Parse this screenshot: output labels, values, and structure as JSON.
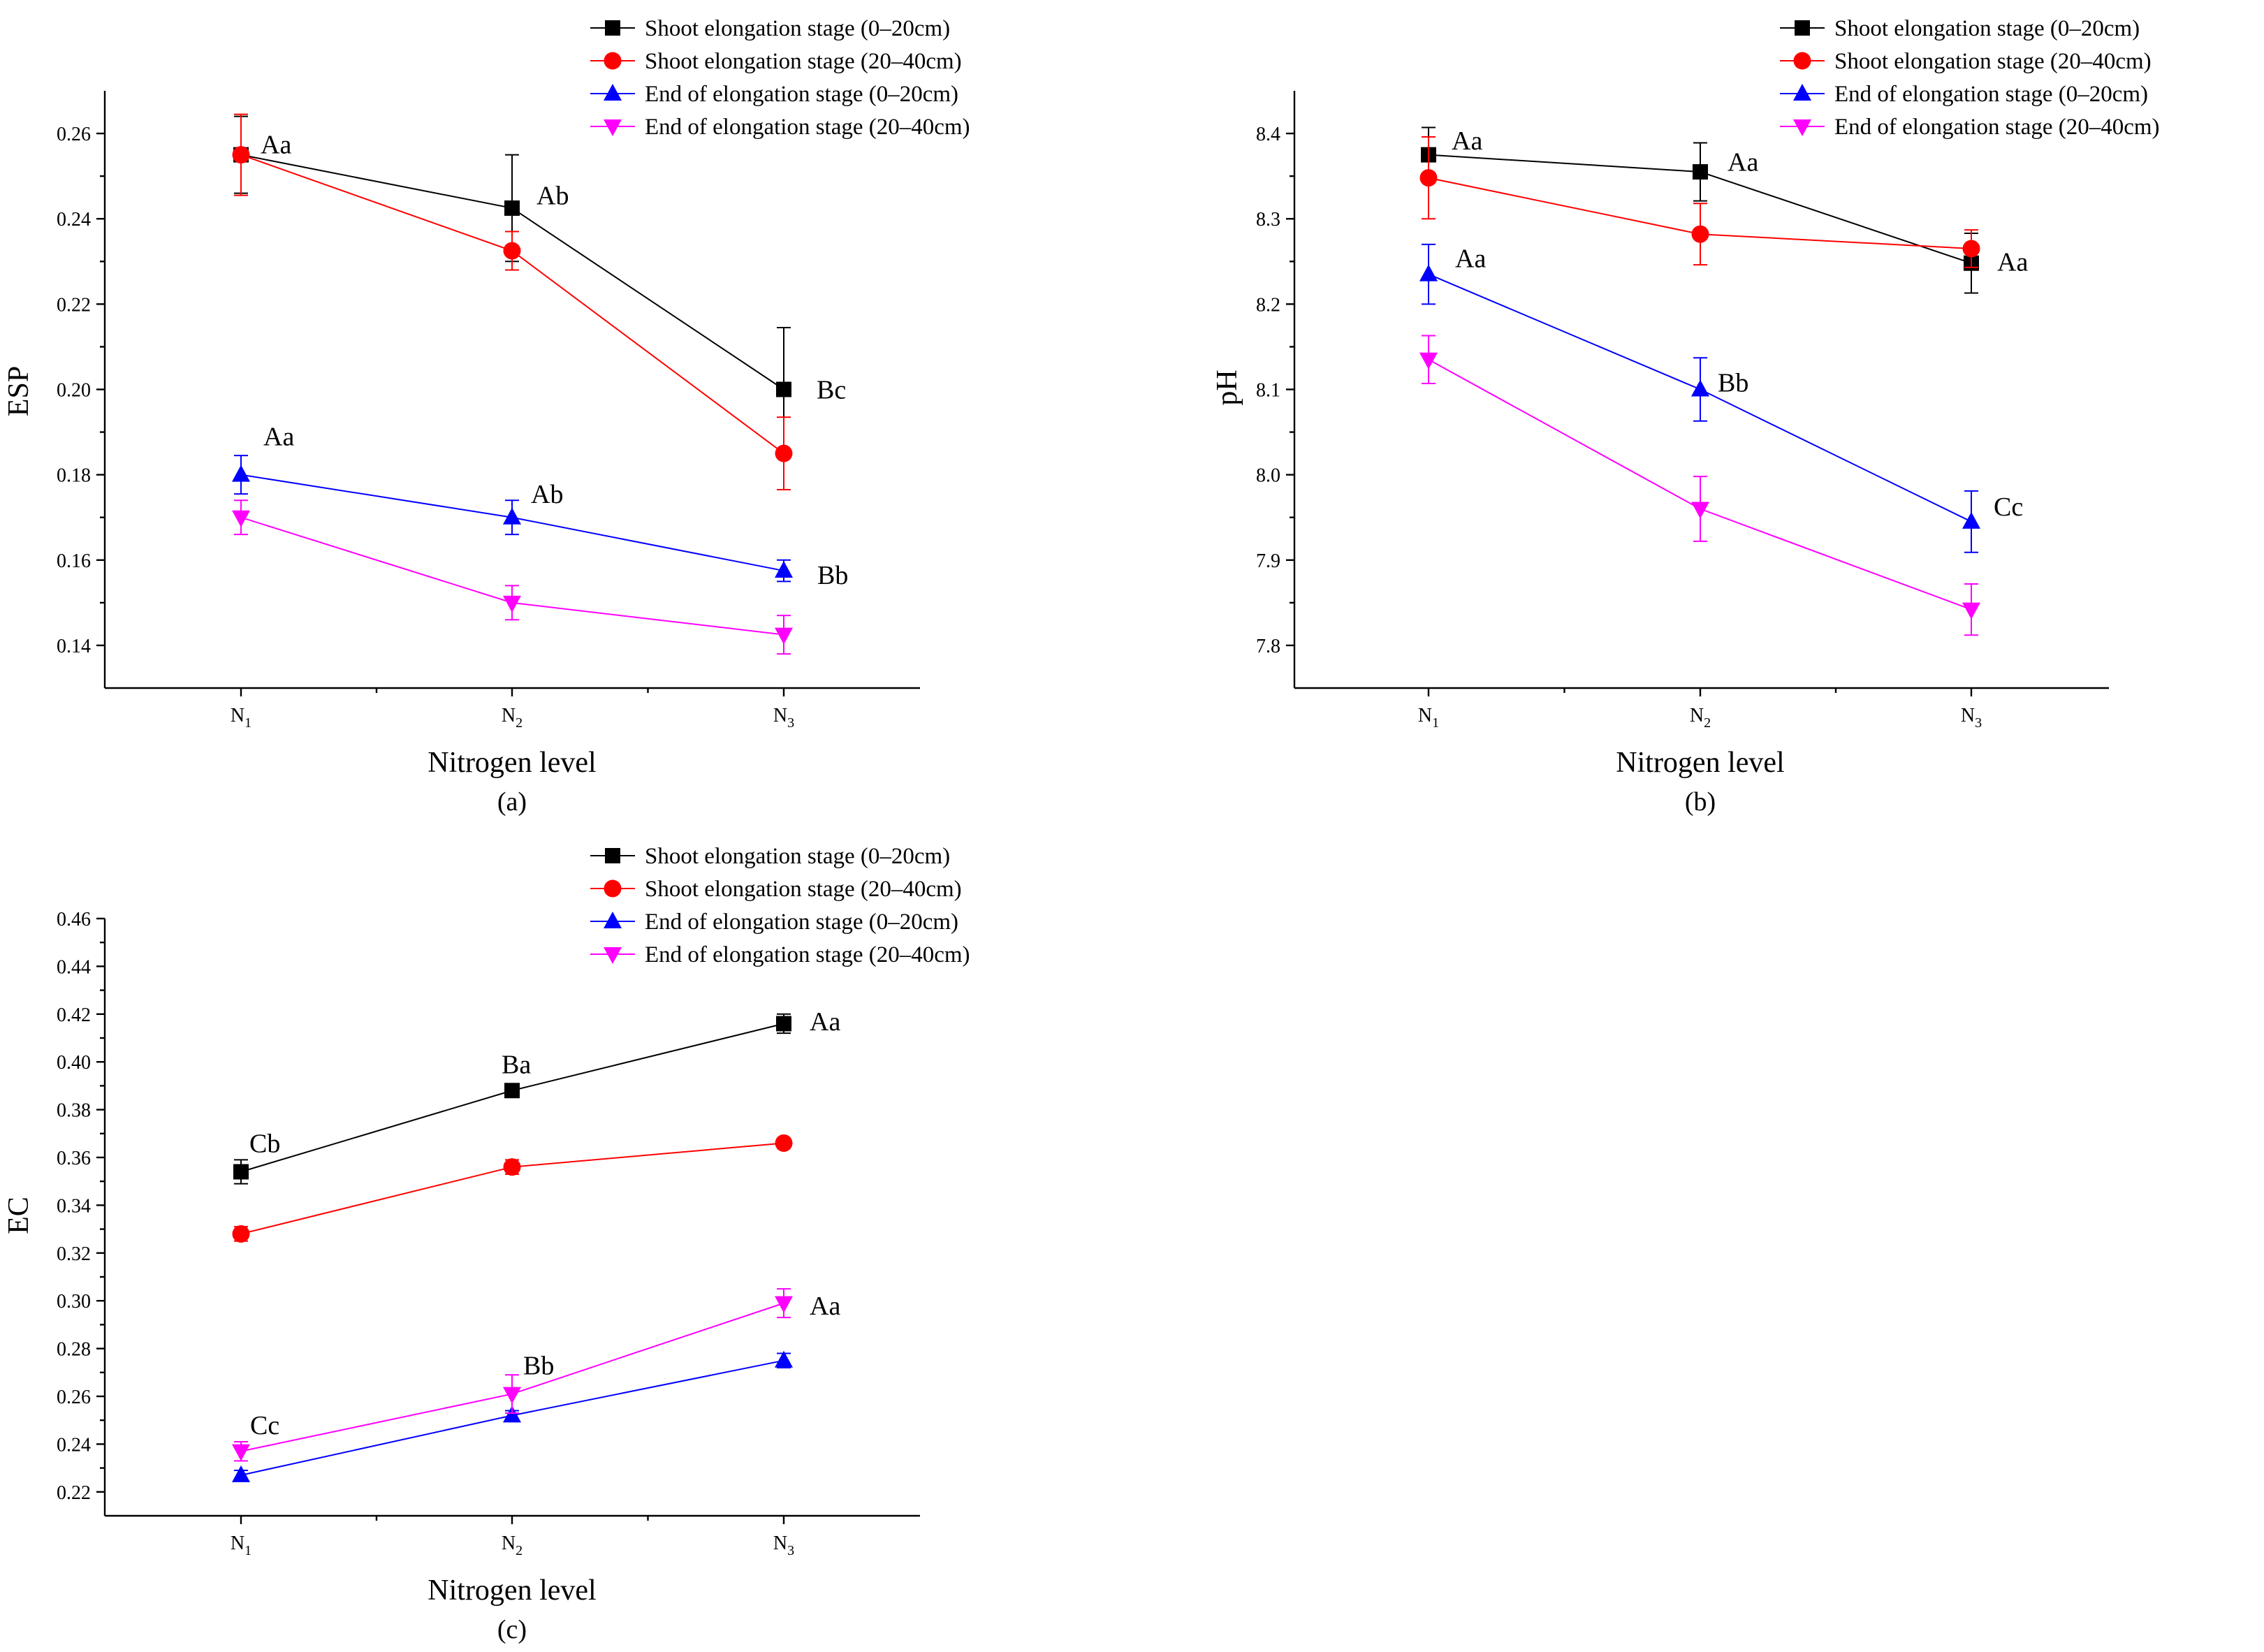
{
  "figure": {
    "xlabel": "Nitrogen level",
    "categories": [
      {
        "base": "N",
        "sub": "1"
      },
      {
        "base": "N",
        "sub": "2"
      },
      {
        "base": "N",
        "sub": "3"
      }
    ],
    "legend": [
      {
        "label": "Shoot elongation stage (0–20cm)",
        "color": "#000000",
        "marker": "square"
      },
      {
        "label": "Shoot elongation stage (20–40cm)",
        "color": "#ff0000",
        "marker": "circle"
      },
      {
        "label": "End of elongation stage (0–20cm)",
        "color": "#0000ff",
        "marker": "triangle-up"
      },
      {
        "label": "End of elongation stage (20–40cm)",
        "color": "#ff00ff",
        "marker": "triangle-down"
      }
    ]
  },
  "chart_data": [
    {
      "type": "line",
      "panel_label": "(a)",
      "ylabel": "ESP",
      "xlabel": "Nitrogen level",
      "ylim": [
        0.13,
        0.27
      ],
      "yticks": [
        "0.14",
        "0.16",
        "0.18",
        "0.20",
        "0.22",
        "0.24",
        "0.26"
      ],
      "series": [
        {
          "name": "Shoot elongation stage (0–20cm)",
          "values": [
            0.255,
            0.2425,
            0.2
          ],
          "errors": [
            0.009,
            0.0125,
            0.0145
          ]
        },
        {
          "name": "Shoot elongation stage (20–40cm)",
          "values": [
            0.255,
            0.2325,
            0.185
          ],
          "errors": [
            0.0095,
            0.0045,
            0.0085
          ]
        },
        {
          "name": "End of elongation stage (0–20cm)",
          "values": [
            0.18,
            0.17,
            0.1575
          ],
          "errors": [
            0.0045,
            0.004,
            0.0025
          ]
        },
        {
          "name": "End of elongation stage (20–40cm)",
          "values": [
            0.17,
            0.15,
            0.1425
          ],
          "errors": [
            0.004,
            0.004,
            0.0045
          ]
        }
      ],
      "annotations": [
        {
          "text": "Aa",
          "x": 0,
          "y": 0.2575
        },
        {
          "text": "Ab",
          "x": 1,
          "y": 0.2455
        },
        {
          "text": "Bc",
          "x": 2,
          "y": 0.2
        },
        {
          "text": "Aa",
          "x": 0,
          "y": 0.189
        },
        {
          "text": "Ab",
          "x": 1,
          "y": 0.1755
        },
        {
          "text": "Bb",
          "x": 2,
          "y": 0.1565
        }
      ]
    },
    {
      "type": "line",
      "panel_label": "(b)",
      "ylabel": "pH",
      "xlabel": "Nitrogen level",
      "ylim": [
        7.75,
        8.45
      ],
      "yticks": [
        "7.8",
        "7.9",
        "8.0",
        "8.1",
        "8.2",
        "8.3",
        "8.4"
      ],
      "series": [
        {
          "name": "Shoot elongation stage (0–20cm)",
          "values": [
            8.375,
            8.355,
            8.248
          ],
          "errors": [
            0.032,
            0.034,
            0.035
          ]
        },
        {
          "name": "Shoot elongation stage (20–40cm)",
          "values": [
            8.348,
            8.282,
            8.265
          ],
          "errors": [
            0.048,
            0.036,
            0.022
          ]
        },
        {
          "name": "End of elongation stage (0–20cm)",
          "values": [
            8.235,
            8.1,
            7.945
          ],
          "errors": [
            0.035,
            0.037,
            0.036
          ]
        },
        {
          "name": "End of elongation stage (20–40cm)",
          "values": [
            8.135,
            7.96,
            7.842
          ],
          "errors": [
            0.028,
            0.038,
            0.03
          ]
        }
      ],
      "annotations": [
        {
          "text": "Aa",
          "x": 0,
          "y": 8.392
        },
        {
          "text": "Aa",
          "x": 1,
          "y": 8.367
        },
        {
          "text": "Aa",
          "x": 2,
          "y": 8.25
        },
        {
          "text": "Aa",
          "x": 0,
          "y": 8.254
        },
        {
          "text": "Bb",
          "x": 1,
          "y": 8.108
        },
        {
          "text": "Cc",
          "x": 2,
          "y": 7.963
        }
      ]
    },
    {
      "type": "line",
      "panel_label": "(c)",
      "ylabel": "EC",
      "xlabel": "Nitrogen level",
      "ylim": [
        0.21,
        0.46
      ],
      "yticks": [
        "0.22",
        "0.24",
        "0.26",
        "0.28",
        "0.30",
        "0.32",
        "0.34",
        "0.36",
        "0.38",
        "0.40",
        "0.42",
        "0.44",
        "0.46"
      ],
      "series": [
        {
          "name": "Shoot elongation stage (0–20cm)",
          "values": [
            0.354,
            0.388,
            0.416
          ],
          "errors": [
            0.005,
            0.002,
            0.004
          ]
        },
        {
          "name": "Shoot elongation stage (20–40cm)",
          "values": [
            0.328,
            0.356,
            0.366
          ],
          "errors": [
            0.003,
            0.003,
            0.002
          ]
        },
        {
          "name": "End of elongation stage (0–20cm)",
          "values": [
            0.227,
            0.252,
            0.275
          ],
          "errors": [
            0.002,
            0.002,
            0.003
          ]
        },
        {
          "name": "End of elongation stage (20–40cm)",
          "values": [
            0.237,
            0.261,
            0.299
          ],
          "errors": [
            0.004,
            0.008,
            0.006
          ]
        }
      ],
      "annotations": [
        {
          "text": "Cb",
          "x": 0,
          "y": 0.366
        },
        {
          "text": "Ba",
          "x": 1,
          "y": 0.399
        },
        {
          "text": "Aa",
          "x": 2,
          "y": 0.417
        },
        {
          "text": "Cc",
          "x": 0,
          "y": 0.248
        },
        {
          "text": "Bb",
          "x": 1,
          "y": 0.273
        },
        {
          "text": "Aa",
          "x": 2,
          "y": 0.298
        }
      ]
    }
  ]
}
